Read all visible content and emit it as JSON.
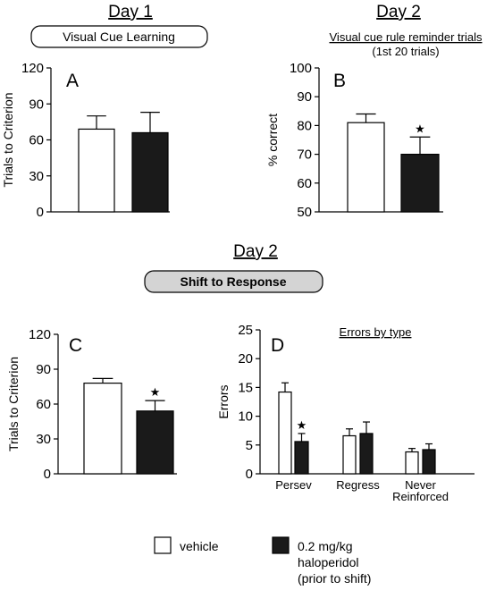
{
  "headers": {
    "day1": "Day 1",
    "day2_top": "Day 2",
    "day2_mid": "Day 2",
    "box_a": "Visual Cue Learning",
    "box_mid": "Shift to Response",
    "b_sub1": "Visual cue rule reminder trials",
    "b_sub2": "(1st 20 trials)"
  },
  "legend": {
    "vehicle": "vehicle",
    "halo_line1": "0.2 mg/kg",
    "halo_line2": "haloperidol",
    "halo_line3": "(prior to shift)"
  },
  "colors": {
    "vehicle": "#ffffff",
    "haloperidol": "#1a1a1a",
    "box_mid": "#d4d4d4"
  },
  "chart_data": [
    {
      "id": "A",
      "type": "bar",
      "panel_label": "A",
      "ylabel": "Trials to Criterion",
      "ylim": [
        0,
        120
      ],
      "yticks": [
        0,
        30,
        60,
        90,
        120
      ],
      "categories": [
        ""
      ],
      "series": [
        {
          "name": "vehicle",
          "values": [
            69
          ],
          "errors": [
            11
          ]
        },
        {
          "name": "0.2 mg/kg haloperidol (prior to shift)",
          "values": [
            66
          ],
          "errors": [
            17
          ]
        }
      ],
      "stars": []
    },
    {
      "id": "B",
      "type": "bar",
      "panel_label": "B",
      "ylabel": "% correct",
      "ylim": [
        50,
        100
      ],
      "yticks": [
        50,
        60,
        70,
        80,
        90,
        100
      ],
      "categories": [
        ""
      ],
      "series": [
        {
          "name": "vehicle",
          "values": [
            81
          ],
          "errors": [
            3
          ]
        },
        {
          "name": "0.2 mg/kg haloperidol (prior to shift)",
          "values": [
            70
          ],
          "errors": [
            6
          ]
        }
      ],
      "stars": [
        [
          0,
          1
        ]
      ]
    },
    {
      "id": "C",
      "type": "bar",
      "panel_label": "C",
      "ylabel": "Trials to Criterion",
      "ylim": [
        0,
        120
      ],
      "yticks": [
        0,
        30,
        60,
        90,
        120
      ],
      "categories": [
        ""
      ],
      "series": [
        {
          "name": "vehicle",
          "values": [
            78
          ],
          "errors": [
            4
          ]
        },
        {
          "name": "0.2 mg/kg haloperidol (prior to shift)",
          "values": [
            54
          ],
          "errors": [
            9
          ]
        }
      ],
      "stars": [
        [
          0,
          1
        ]
      ]
    },
    {
      "id": "D",
      "type": "bar",
      "panel_label": "D",
      "title": "Errors by type",
      "ylabel": "Errors",
      "ylim": [
        0,
        25
      ],
      "yticks": [
        0,
        5,
        10,
        15,
        20,
        25
      ],
      "categories": [
        "Persev",
        "Regress",
        "Never Reinforced"
      ],
      "category_lines": [
        [
          "Persev"
        ],
        [
          "Regress"
        ],
        [
          "Never",
          "Reinforced"
        ]
      ],
      "series": [
        {
          "name": "vehicle",
          "values": [
            14.2,
            6.6,
            3.8
          ],
          "errors": [
            1.6,
            1.2,
            0.6
          ]
        },
        {
          "name": "0.2 mg/kg haloperidol (prior to shift)",
          "values": [
            5.6,
            7.0,
            4.2
          ],
          "errors": [
            1.4,
            2.0,
            1.0
          ]
        }
      ],
      "stars": [
        [
          0,
          1
        ]
      ]
    }
  ]
}
